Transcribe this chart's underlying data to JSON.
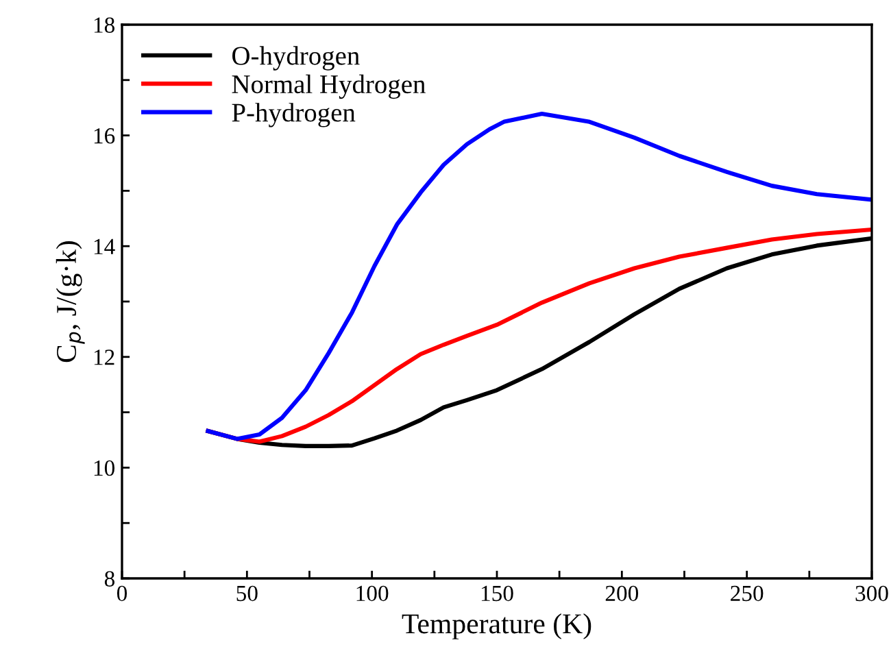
{
  "chart_data": {
    "type": "line",
    "xlabel": "Temperature (K)",
    "ylabel": "C$_{p}$, J/(g·k)",
    "xlim": [
      0,
      300
    ],
    "ylim": [
      8,
      18
    ],
    "xticks": [
      0,
      {
        "value": 25,
        "label": null
      },
      50,
      {
        "value": 75,
        "label": null
      },
      100,
      {
        "value": 125,
        "label": null
      },
      150,
      {
        "value": 175,
        "label": null
      },
      200,
      {
        "value": 225,
        "label": null
      },
      250,
      {
        "value": 275,
        "label": null
      },
      300
    ],
    "yticks": [
      8,
      {
        "value": 9,
        "label": null
      },
      10,
      {
        "value": 11,
        "label": null
      },
      12,
      {
        "value": 13,
        "label": null
      },
      14,
      {
        "value": 15,
        "label": null
      },
      16,
      {
        "value": 17,
        "label": null
      },
      18
    ],
    "grid": false,
    "legend": "top left",
    "marker": "none",
    "line_style": "solid",
    "series": [
      {
        "name": "O-hydrogen",
        "color": "#000000",
        "x": [
          34.4,
          46,
          55,
          64,
          73.5,
          82.7,
          92,
          101,
          110,
          119.5,
          128.7,
          138,
          150,
          168,
          187,
          205,
          223,
          242,
          260,
          278,
          300
        ],
        "values": [
          10.66,
          10.52,
          10.45,
          10.41,
          10.39,
          10.39,
          10.4,
          10.53,
          10.67,
          10.86,
          11.09,
          11.22,
          11.4,
          11.78,
          12.27,
          12.77,
          13.23,
          13.6,
          13.85,
          14.01,
          14.14
        ]
      },
      {
        "name": "Normal Hydrogen",
        "color": "#ff0000",
        "x": [
          34.4,
          46,
          55,
          64,
          73.5,
          82.7,
          92,
          101,
          110,
          119.5,
          128.7,
          138,
          150,
          168,
          187,
          205,
          223,
          242,
          260,
          278,
          300
        ],
        "values": [
          10.66,
          10.52,
          10.47,
          10.57,
          10.74,
          10.95,
          11.2,
          11.49,
          11.78,
          12.05,
          12.22,
          12.38,
          12.58,
          12.98,
          13.33,
          13.6,
          13.81,
          13.97,
          14.12,
          14.22,
          14.3
        ]
      },
      {
        "name": "P-hydrogen",
        "color": "#0000ff",
        "x": [
          34.4,
          46,
          55,
          64,
          73.5,
          82.7,
          92,
          101,
          110,
          119.5,
          128.7,
          138,
          147,
          153,
          168,
          186.7,
          205,
          223,
          242,
          260,
          278,
          300
        ],
        "values": [
          10.66,
          10.52,
          10.6,
          10.9,
          11.4,
          12.07,
          12.8,
          13.64,
          14.39,
          14.97,
          15.47,
          15.84,
          16.11,
          16.25,
          16.39,
          16.25,
          15.96,
          15.63,
          15.34,
          15.09,
          14.94,
          14.84
        ]
      }
    ]
  }
}
